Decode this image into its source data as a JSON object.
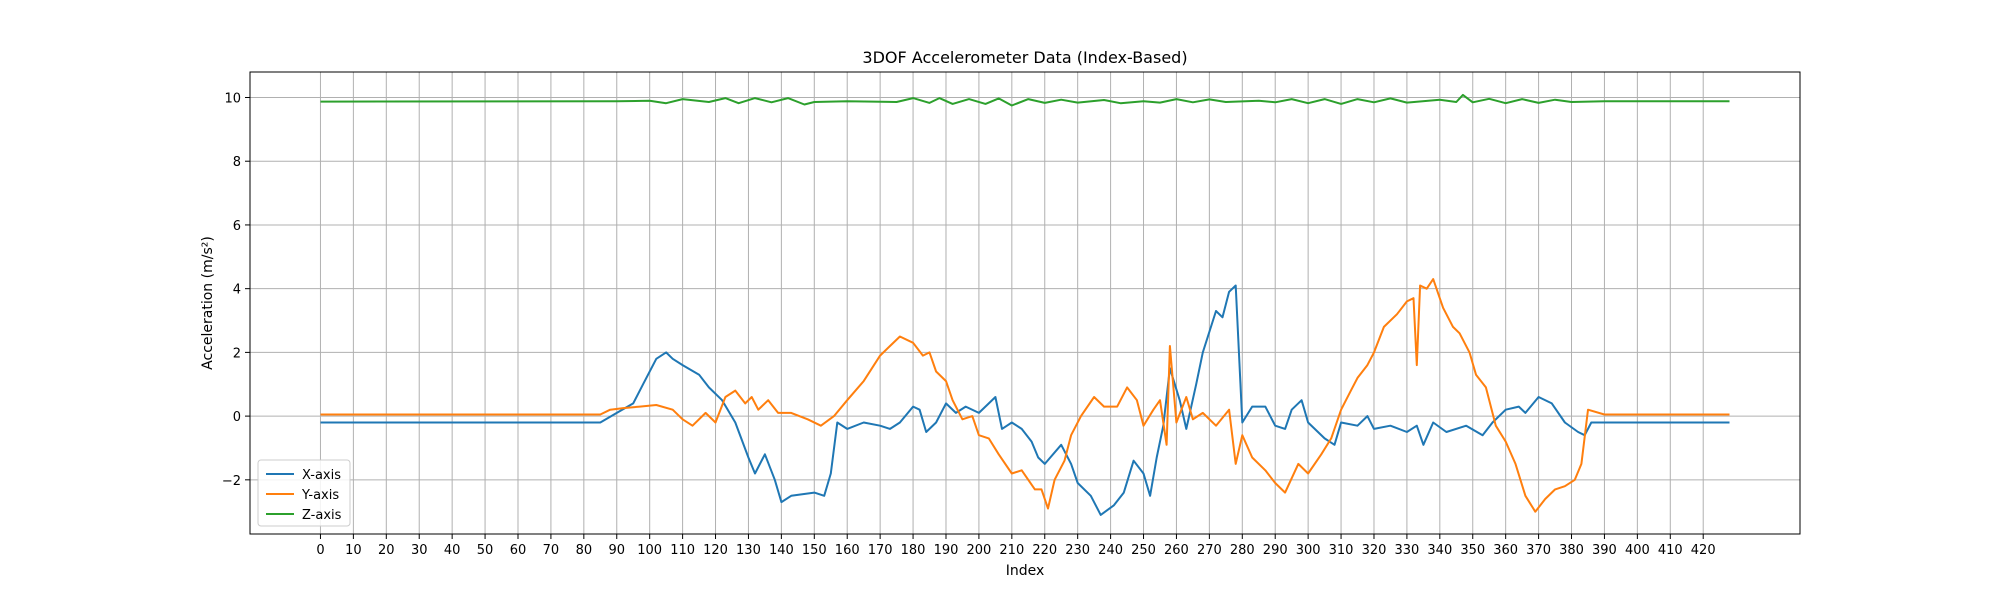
{
  "chart_data": {
    "type": "line",
    "title": "3DOF Accelerometer Data (Index-Based)",
    "xlabel": "Index",
    "ylabel": "Acceleration (m/s²)",
    "xlim": [
      -21.4,
      449.4
    ],
    "ylim": [
      -3.7,
      10.8
    ],
    "xticks": [
      0,
      10,
      20,
      30,
      40,
      50,
      60,
      70,
      80,
      90,
      100,
      110,
      120,
      130,
      140,
      150,
      160,
      170,
      180,
      190,
      200,
      210,
      220,
      230,
      240,
      250,
      260,
      270,
      280,
      290,
      300,
      310,
      320,
      330,
      340,
      350,
      360,
      370,
      380,
      390,
      400,
      410,
      420
    ],
    "yticks": [
      -2,
      0,
      2,
      4,
      6,
      8,
      10
    ],
    "grid": true,
    "legend_position": "lower left",
    "series": [
      {
        "name": "X-axis",
        "color": "#1f77b4",
        "points": [
          [
            0,
            -0.2
          ],
          [
            85,
            -0.2
          ],
          [
            90,
            0.1
          ],
          [
            95,
            0.4
          ],
          [
            98,
            1.0
          ],
          [
            102,
            1.8
          ],
          [
            105,
            2.0
          ],
          [
            107,
            1.8
          ],
          [
            110,
            1.6
          ],
          [
            115,
            1.3
          ],
          [
            118,
            0.9
          ],
          [
            122,
            0.5
          ],
          [
            126,
            -0.2
          ],
          [
            130,
            -1.3
          ],
          [
            132,
            -1.8
          ],
          [
            135,
            -1.2
          ],
          [
            138,
            -2.0
          ],
          [
            140,
            -2.7
          ],
          [
            143,
            -2.5
          ],
          [
            150,
            -2.4
          ],
          [
            153,
            -2.5
          ],
          [
            155,
            -1.8
          ],
          [
            157,
            -0.2
          ],
          [
            160,
            -0.4
          ],
          [
            165,
            -0.2
          ],
          [
            170,
            -0.3
          ],
          [
            173,
            -0.4
          ],
          [
            176,
            -0.2
          ],
          [
            180,
            0.3
          ],
          [
            182,
            0.2
          ],
          [
            184,
            -0.5
          ],
          [
            187,
            -0.2
          ],
          [
            190,
            0.4
          ],
          [
            193,
            0.1
          ],
          [
            196,
            0.3
          ],
          [
            200,
            0.1
          ],
          [
            203,
            0.4
          ],
          [
            205,
            0.6
          ],
          [
            207,
            -0.4
          ],
          [
            210,
            -0.2
          ],
          [
            213,
            -0.4
          ],
          [
            216,
            -0.8
          ],
          [
            218,
            -1.3
          ],
          [
            220,
            -1.5
          ],
          [
            225,
            -0.9
          ],
          [
            228,
            -1.5
          ],
          [
            230,
            -2.1
          ],
          [
            234,
            -2.5
          ],
          [
            237,
            -3.1
          ],
          [
            241,
            -2.8
          ],
          [
            244,
            -2.4
          ],
          [
            247,
            -1.4
          ],
          [
            250,
            -1.8
          ],
          [
            252,
            -2.5
          ],
          [
            254,
            -1.3
          ],
          [
            256,
            -0.3
          ],
          [
            258,
            1.5
          ],
          [
            261,
            0.5
          ],
          [
            263,
            -0.4
          ],
          [
            266,
            1.0
          ],
          [
            268,
            2.0
          ],
          [
            272,
            3.3
          ],
          [
            274,
            3.1
          ],
          [
            276,
            3.9
          ],
          [
            278,
            4.1
          ],
          [
            280,
            -0.2
          ],
          [
            283,
            0.3
          ],
          [
            287,
            0.3
          ],
          [
            290,
            -0.3
          ],
          [
            293,
            -0.4
          ],
          [
            295,
            0.2
          ],
          [
            298,
            0.5
          ],
          [
            300,
            -0.2
          ],
          [
            305,
            -0.7
          ],
          [
            308,
            -0.9
          ],
          [
            310,
            -0.2
          ],
          [
            315,
            -0.3
          ],
          [
            318,
            0.0
          ],
          [
            320,
            -0.4
          ],
          [
            325,
            -0.3
          ],
          [
            330,
            -0.5
          ],
          [
            333,
            -0.3
          ],
          [
            335,
            -0.9
          ],
          [
            338,
            -0.2
          ],
          [
            342,
            -0.5
          ],
          [
            348,
            -0.3
          ],
          [
            353,
            -0.6
          ],
          [
            356,
            -0.2
          ],
          [
            360,
            0.2
          ],
          [
            364,
            0.3
          ],
          [
            366,
            0.1
          ],
          [
            370,
            0.6
          ],
          [
            374,
            0.4
          ],
          [
            378,
            -0.2
          ],
          [
            382,
            -0.5
          ],
          [
            384,
            -0.6
          ],
          [
            386,
            -0.2
          ],
          [
            428,
            -0.2
          ]
        ]
      },
      {
        "name": "Y-axis",
        "color": "#ff7f0e",
        "points": [
          [
            0,
            0.05
          ],
          [
            85,
            0.05
          ],
          [
            88,
            0.2
          ],
          [
            92,
            0.25
          ],
          [
            97,
            0.3
          ],
          [
            102,
            0.35
          ],
          [
            107,
            0.2
          ],
          [
            110,
            -0.1
          ],
          [
            113,
            -0.3
          ],
          [
            117,
            0.1
          ],
          [
            120,
            -0.2
          ],
          [
            123,
            0.6
          ],
          [
            126,
            0.8
          ],
          [
            129,
            0.4
          ],
          [
            131,
            0.6
          ],
          [
            133,
            0.2
          ],
          [
            136,
            0.5
          ],
          [
            139,
            0.1
          ],
          [
            143,
            0.1
          ],
          [
            148,
            -0.1
          ],
          [
            152,
            -0.3
          ],
          [
            156,
            0.0
          ],
          [
            160,
            0.5
          ],
          [
            165,
            1.1
          ],
          [
            170,
            1.9
          ],
          [
            173,
            2.2
          ],
          [
            176,
            2.5
          ],
          [
            180,
            2.3
          ],
          [
            183,
            1.9
          ],
          [
            185,
            2.0
          ],
          [
            187,
            1.4
          ],
          [
            190,
            1.1
          ],
          [
            192,
            0.5
          ],
          [
            195,
            -0.1
          ],
          [
            198,
            0.0
          ],
          [
            200,
            -0.6
          ],
          [
            203,
            -0.7
          ],
          [
            206,
            -1.2
          ],
          [
            210,
            -1.8
          ],
          [
            213,
            -1.7
          ],
          [
            217,
            -2.3
          ],
          [
            219,
            -2.3
          ],
          [
            221,
            -2.9
          ],
          [
            223,
            -2.0
          ],
          [
            226,
            -1.4
          ],
          [
            228,
            -0.6
          ],
          [
            231,
            0.0
          ],
          [
            235,
            0.6
          ],
          [
            238,
            0.3
          ],
          [
            242,
            0.3
          ],
          [
            245,
            0.9
          ],
          [
            248,
            0.5
          ],
          [
            250,
            -0.3
          ],
          [
            253,
            0.2
          ],
          [
            255,
            0.5
          ],
          [
            257,
            -0.9
          ],
          [
            258,
            2.2
          ],
          [
            260,
            -0.2
          ],
          [
            263,
            0.6
          ],
          [
            265,
            -0.1
          ],
          [
            268,
            0.1
          ],
          [
            272,
            -0.3
          ],
          [
            276,
            0.2
          ],
          [
            278,
            -1.5
          ],
          [
            280,
            -0.6
          ],
          [
            283,
            -1.3
          ],
          [
            287,
            -1.7
          ],
          [
            290,
            -2.1
          ],
          [
            293,
            -2.4
          ],
          [
            297,
            -1.5
          ],
          [
            300,
            -1.8
          ],
          [
            304,
            -1.2
          ],
          [
            307,
            -0.7
          ],
          [
            310,
            0.2
          ],
          [
            313,
            0.8
          ],
          [
            315,
            1.2
          ],
          [
            318,
            1.6
          ],
          [
            320,
            2.0
          ],
          [
            323,
            2.8
          ],
          [
            327,
            3.2
          ],
          [
            330,
            3.6
          ],
          [
            332,
            3.7
          ],
          [
            333,
            1.6
          ],
          [
            334,
            4.1
          ],
          [
            336,
            4.0
          ],
          [
            338,
            4.3
          ],
          [
            341,
            3.4
          ],
          [
            344,
            2.8
          ],
          [
            346,
            2.6
          ],
          [
            349,
            2.0
          ],
          [
            351,
            1.3
          ],
          [
            354,
            0.9
          ],
          [
            357,
            -0.3
          ],
          [
            360,
            -0.8
          ],
          [
            363,
            -1.5
          ],
          [
            366,
            -2.5
          ],
          [
            369,
            -3.0
          ],
          [
            372,
            -2.6
          ],
          [
            375,
            -2.3
          ],
          [
            378,
            -2.2
          ],
          [
            381,
            -2.0
          ],
          [
            383,
            -1.5
          ],
          [
            385,
            0.2
          ],
          [
            390,
            0.05
          ],
          [
            428,
            0.05
          ]
        ]
      },
      {
        "name": "Z-axis",
        "color": "#2ca02c",
        "points": [
          [
            0,
            9.87
          ],
          [
            90,
            9.88
          ],
          [
            100,
            9.9
          ],
          [
            105,
            9.82
          ],
          [
            110,
            9.95
          ],
          [
            118,
            9.86
          ],
          [
            123,
            9.98
          ],
          [
            127,
            9.82
          ],
          [
            132,
            9.98
          ],
          [
            137,
            9.85
          ],
          [
            142,
            9.98
          ],
          [
            147,
            9.78
          ],
          [
            150,
            9.86
          ],
          [
            160,
            9.88
          ],
          [
            175,
            9.86
          ],
          [
            180,
            9.98
          ],
          [
            185,
            9.83
          ],
          [
            188,
            9.98
          ],
          [
            192,
            9.8
          ],
          [
            197,
            9.95
          ],
          [
            202,
            9.8
          ],
          [
            206,
            9.97
          ],
          [
            210,
            9.75
          ],
          [
            215,
            9.95
          ],
          [
            220,
            9.83
          ],
          [
            225,
            9.93
          ],
          [
            230,
            9.84
          ],
          [
            238,
            9.92
          ],
          [
            243,
            9.82
          ],
          [
            250,
            9.88
          ],
          [
            255,
            9.84
          ],
          [
            260,
            9.95
          ],
          [
            265,
            9.85
          ],
          [
            270,
            9.94
          ],
          [
            275,
            9.86
          ],
          [
            285,
            9.9
          ],
          [
            290,
            9.85
          ],
          [
            295,
            9.95
          ],
          [
            300,
            9.82
          ],
          [
            305,
            9.95
          ],
          [
            310,
            9.8
          ],
          [
            315,
            9.95
          ],
          [
            320,
            9.85
          ],
          [
            325,
            9.97
          ],
          [
            330,
            9.84
          ],
          [
            340,
            9.93
          ],
          [
            345,
            9.86
          ],
          [
            347,
            10.08
          ],
          [
            350,
            9.85
          ],
          [
            355,
            9.96
          ],
          [
            360,
            9.82
          ],
          [
            365,
            9.95
          ],
          [
            370,
            9.83
          ],
          [
            375,
            9.93
          ],
          [
            380,
            9.86
          ],
          [
            390,
            9.88
          ],
          [
            428,
            9.88
          ]
        ]
      }
    ]
  }
}
